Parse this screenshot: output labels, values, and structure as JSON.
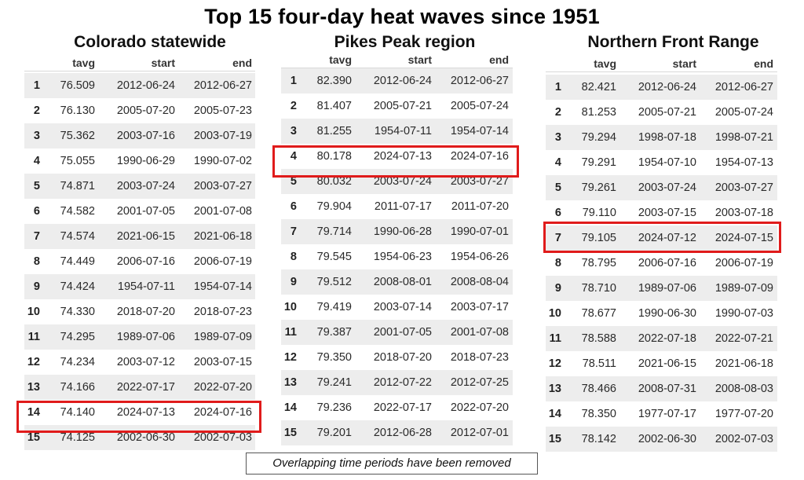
{
  "title": "Top 15 four-day heat waves since 1951",
  "footnote": "Overlapping time periods have been removed",
  "highlight_color": "#e01b1b",
  "columns": {
    "tavg": "tavg",
    "start": "start",
    "end": "end"
  },
  "tables": [
    {
      "title": "Colorado statewide",
      "highlight_rank": 14,
      "rows": [
        {
          "rank": "1",
          "tavg": "76.509",
          "start": "2012-06-24",
          "end": "2012-06-27"
        },
        {
          "rank": "2",
          "tavg": "76.130",
          "start": "2005-07-20",
          "end": "2005-07-23"
        },
        {
          "rank": "3",
          "tavg": "75.362",
          "start": "2003-07-16",
          "end": "2003-07-19"
        },
        {
          "rank": "4",
          "tavg": "75.055",
          "start": "1990-06-29",
          "end": "1990-07-02"
        },
        {
          "rank": "5",
          "tavg": "74.871",
          "start": "2003-07-24",
          "end": "2003-07-27"
        },
        {
          "rank": "6",
          "tavg": "74.582",
          "start": "2001-07-05",
          "end": "2001-07-08"
        },
        {
          "rank": "7",
          "tavg": "74.574",
          "start": "2021-06-15",
          "end": "2021-06-18"
        },
        {
          "rank": "8",
          "tavg": "74.449",
          "start": "2006-07-16",
          "end": "2006-07-19"
        },
        {
          "rank": "9",
          "tavg": "74.424",
          "start": "1954-07-11",
          "end": "1954-07-14"
        },
        {
          "rank": "10",
          "tavg": "74.330",
          "start": "2018-07-20",
          "end": "2018-07-23"
        },
        {
          "rank": "11",
          "tavg": "74.295",
          "start": "1989-07-06",
          "end": "1989-07-09"
        },
        {
          "rank": "12",
          "tavg": "74.234",
          "start": "2003-07-12",
          "end": "2003-07-15"
        },
        {
          "rank": "13",
          "tavg": "74.166",
          "start": "2022-07-17",
          "end": "2022-07-20"
        },
        {
          "rank": "14",
          "tavg": "74.140",
          "start": "2024-07-13",
          "end": "2024-07-16"
        },
        {
          "rank": "15",
          "tavg": "74.125",
          "start": "2002-06-30",
          "end": "2002-07-03"
        }
      ]
    },
    {
      "title": "Pikes Peak region",
      "highlight_rank": 4,
      "rows": [
        {
          "rank": "1",
          "tavg": "82.390",
          "start": "2012-06-24",
          "end": "2012-06-27"
        },
        {
          "rank": "2",
          "tavg": "81.407",
          "start": "2005-07-21",
          "end": "2005-07-24"
        },
        {
          "rank": "3",
          "tavg": "81.255",
          "start": "1954-07-11",
          "end": "1954-07-14"
        },
        {
          "rank": "4",
          "tavg": "80.178",
          "start": "2024-07-13",
          "end": "2024-07-16"
        },
        {
          "rank": "5",
          "tavg": "80.032",
          "start": "2003-07-24",
          "end": "2003-07-27"
        },
        {
          "rank": "6",
          "tavg": "79.904",
          "start": "2011-07-17",
          "end": "2011-07-20"
        },
        {
          "rank": "7",
          "tavg": "79.714",
          "start": "1990-06-28",
          "end": "1990-07-01"
        },
        {
          "rank": "8",
          "tavg": "79.545",
          "start": "1954-06-23",
          "end": "1954-06-26"
        },
        {
          "rank": "9",
          "tavg": "79.512",
          "start": "2008-08-01",
          "end": "2008-08-04"
        },
        {
          "rank": "10",
          "tavg": "79.419",
          "start": "2003-07-14",
          "end": "2003-07-17"
        },
        {
          "rank": "11",
          "tavg": "79.387",
          "start": "2001-07-05",
          "end": "2001-07-08"
        },
        {
          "rank": "12",
          "tavg": "79.350",
          "start": "2018-07-20",
          "end": "2018-07-23"
        },
        {
          "rank": "13",
          "tavg": "79.241",
          "start": "2012-07-22",
          "end": "2012-07-25"
        },
        {
          "rank": "14",
          "tavg": "79.236",
          "start": "2022-07-17",
          "end": "2022-07-20"
        },
        {
          "rank": "15",
          "tavg": "79.201",
          "start": "2012-06-28",
          "end": "2012-07-01"
        }
      ]
    },
    {
      "title": "Northern Front Range",
      "highlight_rank": 7,
      "rows": [
        {
          "rank": "1",
          "tavg": "82.421",
          "start": "2012-06-24",
          "end": "2012-06-27"
        },
        {
          "rank": "2",
          "tavg": "81.253",
          "start": "2005-07-21",
          "end": "2005-07-24"
        },
        {
          "rank": "3",
          "tavg": "79.294",
          "start": "1998-07-18",
          "end": "1998-07-21"
        },
        {
          "rank": "4",
          "tavg": "79.291",
          "start": "1954-07-10",
          "end": "1954-07-13"
        },
        {
          "rank": "5",
          "tavg": "79.261",
          "start": "2003-07-24",
          "end": "2003-07-27"
        },
        {
          "rank": "6",
          "tavg": "79.110",
          "start": "2003-07-15",
          "end": "2003-07-18"
        },
        {
          "rank": "7",
          "tavg": "79.105",
          "start": "2024-07-12",
          "end": "2024-07-15"
        },
        {
          "rank": "8",
          "tavg": "78.795",
          "start": "2006-07-16",
          "end": "2006-07-19"
        },
        {
          "rank": "9",
          "tavg": "78.710",
          "start": "1989-07-06",
          "end": "1989-07-09"
        },
        {
          "rank": "10",
          "tavg": "78.677",
          "start": "1990-06-30",
          "end": "1990-07-03"
        },
        {
          "rank": "11",
          "tavg": "78.588",
          "start": "2022-07-18",
          "end": "2022-07-21"
        },
        {
          "rank": "12",
          "tavg": "78.511",
          "start": "2021-06-15",
          "end": "2021-06-18"
        },
        {
          "rank": "13",
          "tavg": "78.466",
          "start": "2008-07-31",
          "end": "2008-08-03"
        },
        {
          "rank": "14",
          "tavg": "78.350",
          "start": "1977-07-17",
          "end": "1977-07-20"
        },
        {
          "rank": "15",
          "tavg": "78.142",
          "start": "2002-06-30",
          "end": "2002-07-03"
        }
      ]
    }
  ]
}
